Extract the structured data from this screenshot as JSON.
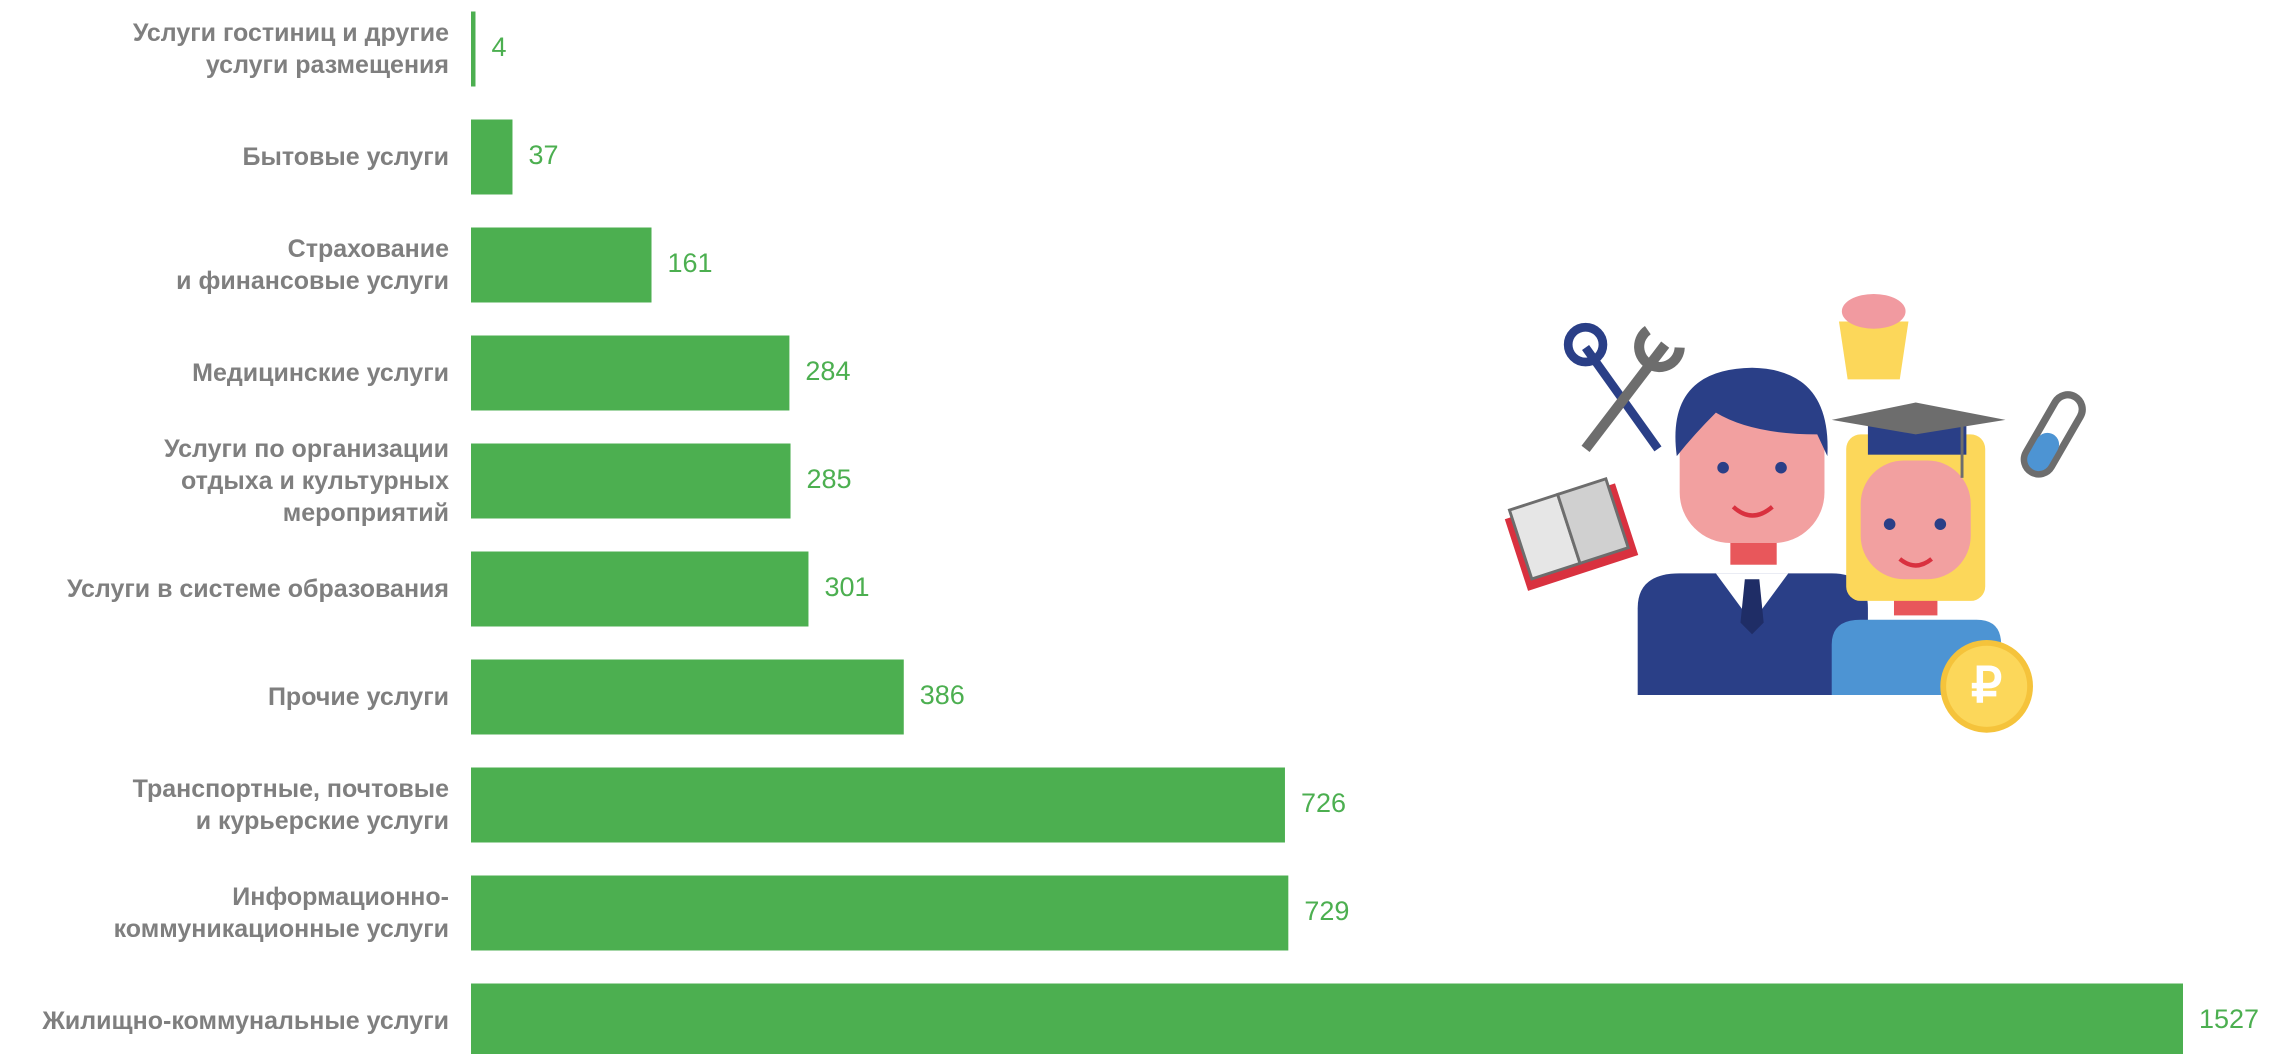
{
  "chart_data": {
    "type": "bar",
    "orientation": "horizontal",
    "categories": [
      "Услуги гостиниц и другие\nуслуги размещения",
      "Бытовые услуги",
      "Страхование\nи финансовые услуги",
      "Медицинские услуги",
      "Услуги по организации\nотдыха и культурных\nмероприятий",
      "Услуги в системе образования",
      "Прочие услуги",
      "Транспортные, почтовые\nи курьерские услуги",
      "Информационно-\nкоммуникационные услуги",
      "Жилищно-коммунальные услуги"
    ],
    "values": [
      4,
      37,
      161,
      284,
      285,
      301,
      386,
      726,
      729,
      1527
    ],
    "color": "#4caf50"
  }
}
